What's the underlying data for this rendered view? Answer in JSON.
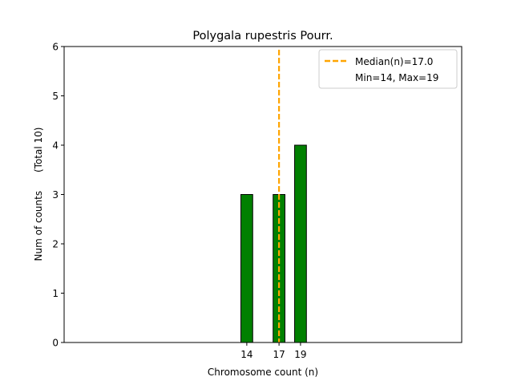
{
  "chart_data": {
    "type": "bar",
    "title": "Polygala rupestris Pourr.",
    "xlabel": "Chromosome count (n)",
    "ylabel": "Num of counts      (Total 10)",
    "x": [
      14,
      17,
      19
    ],
    "values": [
      3,
      3,
      4
    ],
    "x_ticks": [
      "14",
      "17",
      "19"
    ],
    "y_ticks": [
      "0",
      "1",
      "2",
      "3",
      "4",
      "5",
      "6"
    ],
    "ylim": [
      0,
      6
    ],
    "xlim": [
      -3,
      34
    ],
    "median": 17.0,
    "legend": {
      "placement": "top-right",
      "median_label": "Median(n)=17.0",
      "range_label": "Min=14, Max=19"
    },
    "colors": {
      "bar": "#008000",
      "bar_edge": "#000000",
      "median_line": "#FFA500"
    },
    "grid": false
  }
}
